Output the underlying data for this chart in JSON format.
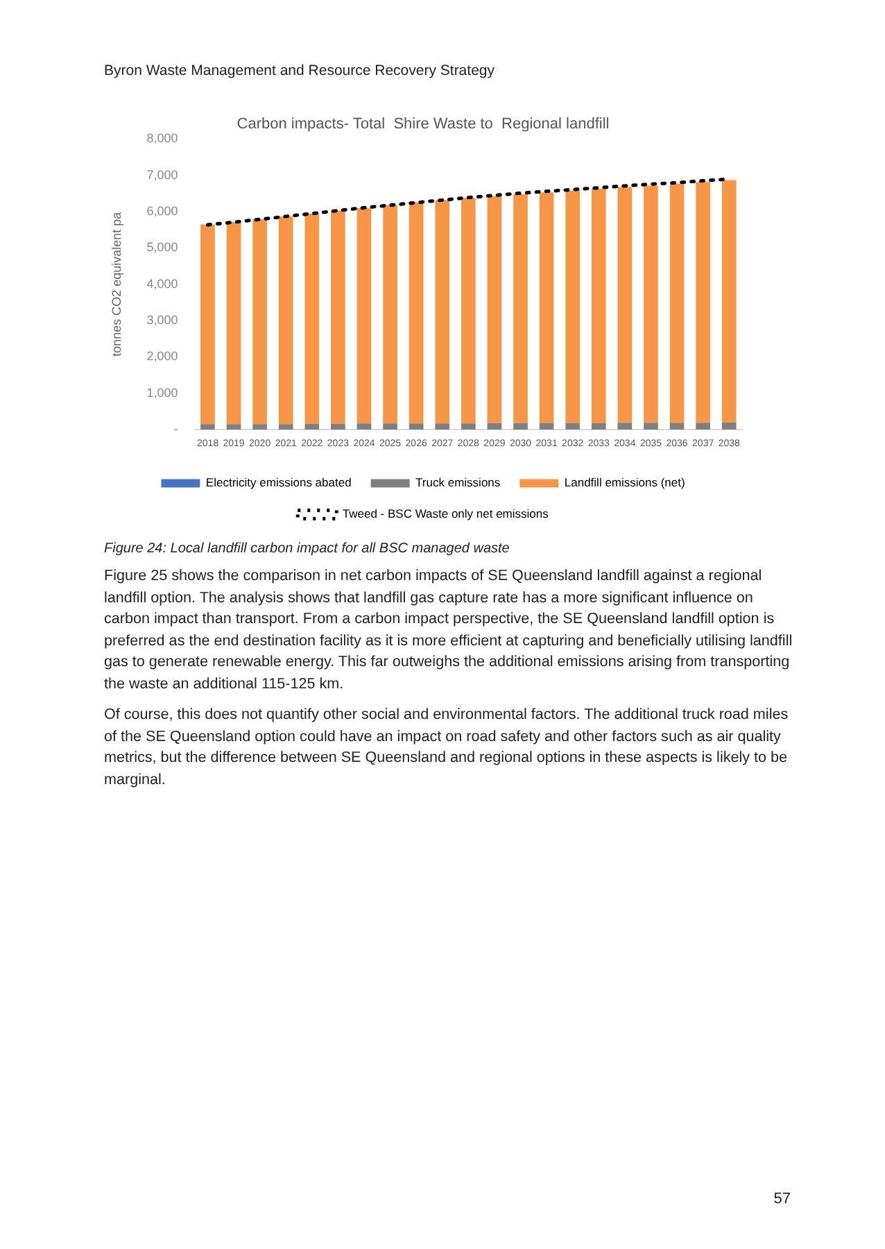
{
  "chart_data": {
    "type": "bar",
    "title": "Carbon impacts- Total  Shire Waste to  Regional landfill",
    "ylabel": "tonnes CO2 equivalent pa",
    "categories": [
      "2018",
      "2019",
      "2020",
      "2021",
      "2022",
      "2023",
      "2024",
      "2025",
      "2026",
      "2027",
      "2028",
      "2029",
      "2030",
      "2031",
      "2032",
      "2033",
      "2034",
      "2035",
      "2036",
      "2037",
      "2038"
    ],
    "stacked": true,
    "series": [
      {
        "name": "Electricity emissions abated",
        "color": "#4472c4",
        "values": [
          0,
          0,
          0,
          0,
          0,
          0,
          0,
          0,
          0,
          0,
          0,
          0,
          0,
          0,
          0,
          0,
          0,
          0,
          0,
          0,
          0
        ]
      },
      {
        "name": "Truck emissions",
        "color": "#7f7f7f",
        "values": [
          150,
          150,
          150,
          150,
          160,
          160,
          170,
          170,
          170,
          170,
          170,
          180,
          180,
          180,
          180,
          180,
          190,
          190,
          190,
          190,
          200
        ]
      },
      {
        "name": "Landfill emissions (net)",
        "color": "#f79646",
        "values": [
          5500,
          5570,
          5640,
          5720,
          5790,
          5870,
          5930,
          6010,
          6090,
          6150,
          6210,
          6250,
          6300,
          6350,
          6400,
          6450,
          6490,
          6530,
          6580,
          6630,
          6670
        ]
      },
      {
        "name": "Tweed - BSC Waste only net emissions",
        "type": "line",
        "color": "#000000",
        "line_style": "dotted",
        "marker": "none",
        "values": [
          5640,
          5710,
          5790,
          5870,
          5950,
          6030,
          6110,
          6180,
          6250,
          6320,
          6390,
          6450,
          6510,
          6560,
          6610,
          6660,
          6710,
          6760,
          6800,
          6850,
          6900
        ]
      }
    ],
    "ylim": [
      0,
      8000
    ],
    "yticks": [
      {
        "value": 0,
        "label": "-"
      },
      {
        "value": 1000,
        "label": "1,000"
      },
      {
        "value": 2000,
        "label": "2,000"
      },
      {
        "value": 3000,
        "label": "3,000"
      },
      {
        "value": 4000,
        "label": "4,000"
      },
      {
        "value": 5000,
        "label": "5,000"
      },
      {
        "value": 6000,
        "label": "6,000"
      },
      {
        "value": 7000,
        "label": "7,000"
      },
      {
        "value": 8000,
        "label": "8,000"
      }
    ],
    "grid": false,
    "legend": "bottom",
    "annotations": [
      "Byron Waste Management and Resource Recovery Strategy",
      "Figure 24: Local landfill carbon impact for all BSC managed waste",
      "Figure 25 shows the comparison in net carbon impacts of SE Queensland landfill against a regional landfill option. The analysis shows that landfill gas capture rate has a more significant influence on carbon impact than transport. From a carbon impact perspective, the SE Queensland landfill option is preferred as the end destination facility as it is more efficient at capturing and beneficially utilising landfill gas to generate renewable energy. This far outweighs the additional emissions arising from transporting the waste an additional 115-125 km.",
      "Of course, this does not quantify other social and environmental factors. The additional truck road miles of the SE Queensland option could have an impact on road safety and other factors such as air quality metrics, but the difference between SE Queensland and regional options in these aspects is likely to be marginal.",
      "57"
    ]
  }
}
